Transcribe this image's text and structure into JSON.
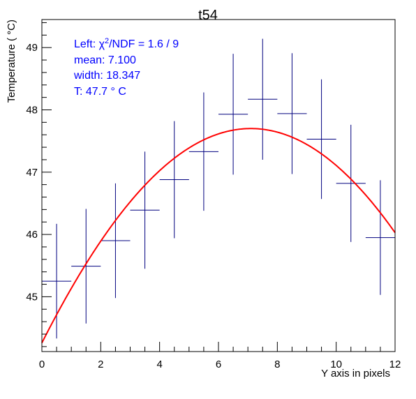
{
  "chart_data": {
    "type": "scatter",
    "title": "t54",
    "xlabel": "Y axis in pixels",
    "ylabel": "Temperature ( °C)",
    "xlim": [
      0,
      12
    ],
    "ylim": [
      44.12,
      49.45
    ],
    "grid": false,
    "x_ticks": [
      0,
      2,
      4,
      6,
      8,
      10,
      12
    ],
    "y_ticks": [
      45,
      46,
      47,
      48,
      49
    ],
    "series": [
      {
        "kind": "points_with_errors",
        "color": "#00007f",
        "points": [
          {
            "x": 0.5,
            "y": 45.25,
            "xerr": 0.5,
            "yerr": 0.92
          },
          {
            "x": 1.5,
            "y": 45.49,
            "xerr": 0.5,
            "yerr": 0.92
          },
          {
            "x": 2.5,
            "y": 45.9,
            "xerr": 0.5,
            "yerr": 0.92
          },
          {
            "x": 3.5,
            "y": 46.39,
            "xerr": 0.5,
            "yerr": 0.94
          },
          {
            "x": 4.5,
            "y": 46.88,
            "xerr": 0.5,
            "yerr": 0.94
          },
          {
            "x": 5.5,
            "y": 47.33,
            "xerr": 0.5,
            "yerr": 0.95
          },
          {
            "x": 6.5,
            "y": 47.93,
            "xerr": 0.5,
            "yerr": 0.97
          },
          {
            "x": 7.5,
            "y": 48.17,
            "xerr": 0.5,
            "yerr": 0.97
          },
          {
            "x": 8.5,
            "y": 47.94,
            "xerr": 0.5,
            "yerr": 0.97
          },
          {
            "x": 9.5,
            "y": 47.53,
            "xerr": 0.5,
            "yerr": 0.96
          },
          {
            "x": 10.5,
            "y": 46.82,
            "xerr": 0.5,
            "yerr": 0.94
          },
          {
            "x": 11.5,
            "y": 45.95,
            "xerr": 0.5,
            "yerr": 0.92
          }
        ]
      },
      {
        "kind": "fit_curve",
        "color": "#ff0000",
        "function": "gaussian",
        "amplitude": 47.7,
        "mean": 7.1,
        "width": 18.347,
        "x_range": [
          0,
          12
        ]
      }
    ],
    "annotations": [
      {
        "chi_prefix": "Left: ",
        "chi_symbol": "χ",
        "chi_exp": "2",
        "chi_suffix": "/NDF = 1.6 / 9"
      },
      {
        "text": "mean: 7.100"
      },
      {
        "text": "width: 18.347"
      },
      {
        "text": "T: 47.7  ° C"
      }
    ],
    "annotation_color": "#0000ff"
  }
}
